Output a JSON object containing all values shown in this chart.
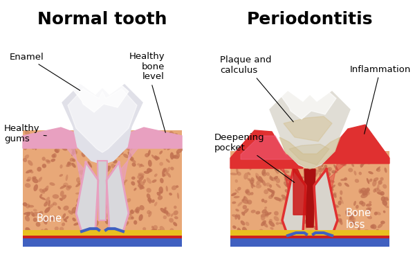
{
  "title_left": "Normal tooth",
  "title_right": "Periodontitis",
  "bg_color": "#ffffff",
  "bone_color": "#E8A878",
  "bone_speckle_color": "#C07050",
  "gum_healthy_color": "#E8A0C0",
  "gum_inflamed_color": "#E03030",
  "tooth_color": "#F0F0F0",
  "tooth_highlight": "#FFFFFF",
  "plaque_color": "#D4C090",
  "root_canal_color": "#CC2020",
  "layer_blue": "#4060C0",
  "layer_yellow": "#E8C020",
  "layer_red": "#CC2020",
  "labels_left": [
    "Enamel",
    "Healthy\ngums",
    "Healthy\nbone\nlevel",
    "Bone"
  ],
  "labels_right": [
    "Plaque and\ncalculus",
    "Deepening\npocket",
    "Inflammation",
    "Bone\nloss"
  ],
  "title_fontsize": 18,
  "label_fontsize": 9.5
}
